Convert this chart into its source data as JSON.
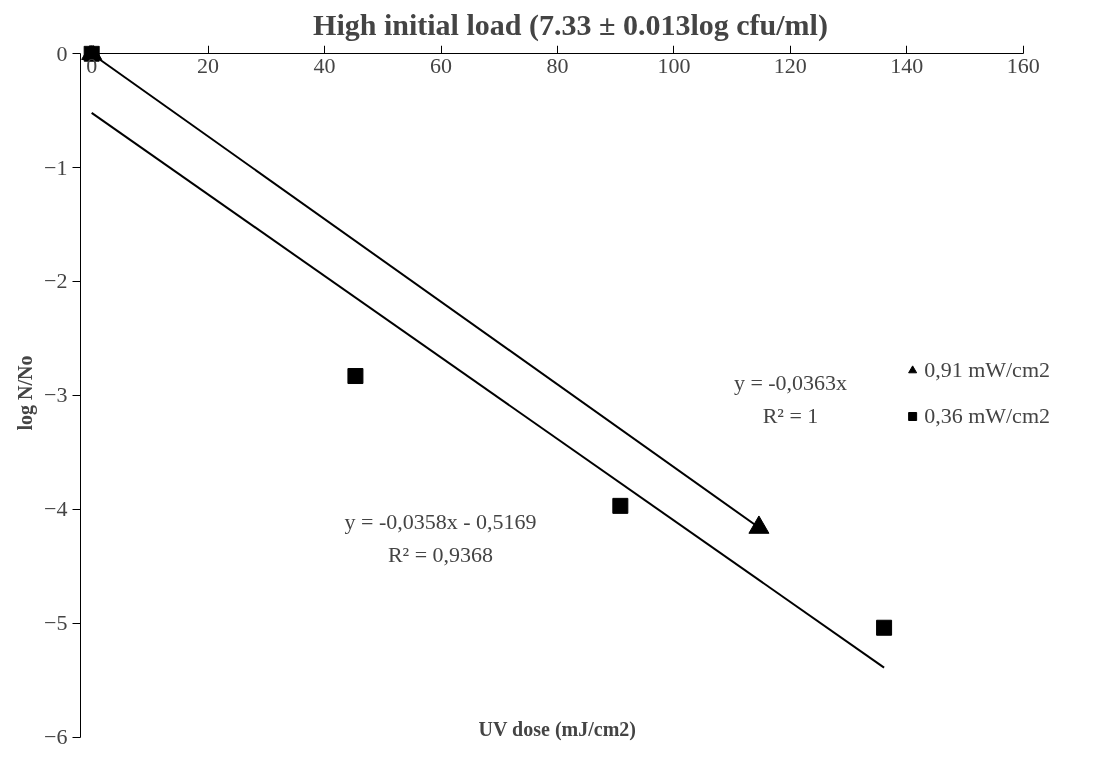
{
  "chart_data": {
    "type": "scatter",
    "title": "High initial load (7.33 ± 0.013log cfu/ml)",
    "xlabel": "UV dose (mJ/cm2)",
    "ylabel": "log N/No",
    "xlim": [
      0,
      160
    ],
    "xticks": [
      0,
      20,
      40,
      60,
      80,
      100,
      120,
      140,
      160
    ],
    "ylim": [
      -6,
      0
    ],
    "yticks": [
      -6,
      -5,
      -4,
      -3,
      -2,
      -1,
      0
    ],
    "grid": false,
    "legend": "right",
    "series": [
      {
        "name": "0,91 mW/cm2",
        "color": "#000000",
        "marker": "triangle",
        "x": [
          0,
          114.6
        ],
        "values": [
          0,
          -4.16
        ]
      },
      {
        "name": "0,36 mW/cm2",
        "color": "#000000",
        "marker": "square",
        "x": [
          0,
          45.3,
          90.8,
          136.1
        ],
        "values": [
          0,
          -2.83,
          -3.97,
          -5.04
        ]
      },
      {
        "type": "line",
        "color": "#000000",
        "x": [
          0,
          114.6
        ],
        "values": [
          0,
          -4.16
        ]
      },
      {
        "type": "line",
        "color": "#000000",
        "x": [
          0,
          136.1
        ],
        "values": [
          -0.52,
          -5.39
        ]
      }
    ],
    "annotations": [
      "y = -0,0363x",
      "R² = 1",
      "y = -0,0358x - 0,5169",
      "R² = 0,9368"
    ]
  }
}
